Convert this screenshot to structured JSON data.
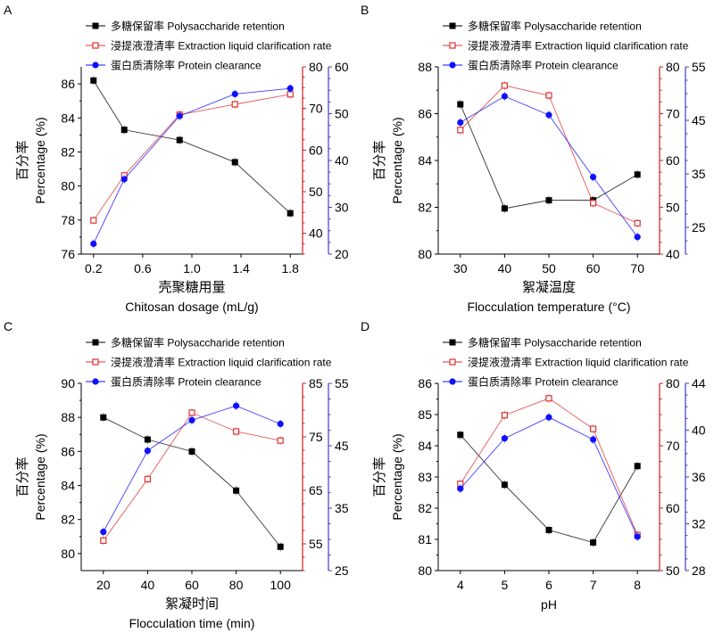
{
  "chart_data": [
    {
      "type": "line",
      "panel_label": "A",
      "xlabel_cn": "壳聚糖用量",
      "xlabel": "Chitosan dosage (mL/g)",
      "ylabel_cn": "百分率",
      "ylabel": "Percentage (%)",
      "x": [
        0.2,
        0.45,
        0.9,
        1.35,
        1.8
      ],
      "xlim": [
        0.1,
        1.9
      ],
      "xticks": [
        0.2,
        0.6,
        1.0,
        1.4,
        1.8
      ],
      "xtick_labels": [
        "0.2",
        "0.6",
        "1.0",
        "1.4",
        "1.8"
      ],
      "axes": {
        "left": {
          "ylim": [
            76,
            87
          ],
          "ticks": [
            76,
            78,
            80,
            82,
            84,
            86
          ],
          "color": "#000000"
        },
        "right_red": {
          "ylim": [
            35,
            80
          ],
          "ticks": [
            40,
            50,
            60,
            70,
            80
          ],
          "color": "#d02020"
        },
        "right_blue": {
          "ylim": [
            20,
            60
          ],
          "ticks": [
            20,
            30,
            40,
            50,
            60
          ],
          "color": "#4040c0"
        }
      },
      "series": [
        {
          "name": "多糖保留率 Polysaccharide retention",
          "axis": "left",
          "marker": "filled-square",
          "color": "#000000",
          "values": [
            86.2,
            83.3,
            82.7,
            81.4,
            78.4
          ]
        },
        {
          "name": "浸提液澄清率 Extraction liquid clarification rate",
          "axis": "right_red",
          "marker": "open-square",
          "color": "#e03030",
          "values": [
            43.1,
            53.9,
            68.5,
            71.0,
            73.4
          ]
        },
        {
          "name": "蛋白质清除率 Protein clearance",
          "axis": "right_blue",
          "marker": "filled-circle",
          "color": "#1010ff",
          "values": [
            22.2,
            36.0,
            49.5,
            54.2,
            55.4
          ]
        }
      ]
    },
    {
      "type": "line",
      "panel_label": "B",
      "xlabel_cn": "絮凝温度",
      "xlabel": "Flocculation temperature (°C)",
      "ylabel_cn": "百分率",
      "ylabel": "Percentage (%)",
      "x": [
        30,
        40,
        50,
        60,
        70
      ],
      "xlim": [
        25,
        75
      ],
      "xticks": [
        30,
        40,
        50,
        60,
        70
      ],
      "xtick_labels": [
        "30",
        "40",
        "50",
        "60",
        "70"
      ],
      "axes": {
        "left": {
          "ylim": [
            80,
            88
          ],
          "ticks": [
            80,
            82,
            84,
            86,
            88
          ],
          "color": "#000000"
        },
        "right_red": {
          "ylim": [
            40,
            80
          ],
          "ticks": [
            40,
            50,
            60,
            70,
            80
          ],
          "color": "#d02020"
        },
        "right_blue": {
          "ylim": [
            20,
            55
          ],
          "ticks": [
            25,
            35,
            45,
            55
          ],
          "color": "#4040c0"
        }
      },
      "series": [
        {
          "name": "多糖保留率 Polysaccharide retention",
          "axis": "left",
          "marker": "filled-square",
          "color": "#000000",
          "values": [
            86.4,
            81.95,
            82.3,
            82.3,
            83.4
          ]
        },
        {
          "name": "浸提液澄清率 Extraction liquid clarification rate",
          "axis": "right_red",
          "marker": "open-square",
          "color": "#e03030",
          "values": [
            66.5,
            76.0,
            73.9,
            50.9,
            46.6
          ]
        },
        {
          "name": "蛋白质清除率 Protein clearance",
          "axis": "right_blue",
          "marker": "filled-circle",
          "color": "#1010ff",
          "values": [
            44.6,
            49.5,
            46.0,
            34.4,
            23.2
          ]
        }
      ]
    },
    {
      "type": "line",
      "panel_label": "C",
      "xlabel_cn": "絮凝时间",
      "xlabel": "Flocculation time (min)",
      "ylabel_cn": "百分率",
      "ylabel": "Percentage (%)",
      "x": [
        20,
        40,
        60,
        80,
        100
      ],
      "xlim": [
        10,
        110
      ],
      "xticks": [
        20,
        40,
        60,
        80,
        100
      ],
      "xtick_labels": [
        "20",
        "40",
        "60",
        "80",
        "100"
      ],
      "axes": {
        "left": {
          "ylim": [
            79,
            90
          ],
          "ticks": [
            80,
            82,
            84,
            86,
            88,
            90
          ],
          "color": "#000000"
        },
        "right_red": {
          "ylim": [
            50,
            85
          ],
          "ticks": [
            55,
            65,
            75,
            85
          ],
          "color": "#d02020"
        },
        "right_blue": {
          "ylim": [
            25,
            55
          ],
          "ticks": [
            25,
            35,
            45,
            55
          ],
          "color": "#4040c0"
        }
      },
      "series": [
        {
          "name": "多糖保留率 Polysaccharide retention",
          "axis": "left",
          "marker": "filled-square",
          "color": "#000000",
          "values": [
            88.0,
            86.7,
            86.0,
            83.7,
            80.4
          ]
        },
        {
          "name": "浸提液澄清率 Extraction liquid clarification rate",
          "axis": "right_red",
          "marker": "open-square",
          "color": "#e03030",
          "values": [
            55.6,
            67.1,
            79.5,
            76.0,
            74.3
          ]
        },
        {
          "name": "蛋白质清除率 Protein clearance",
          "axis": "right_blue",
          "marker": "filled-circle",
          "color": "#1010ff",
          "values": [
            31.2,
            44.2,
            49.1,
            51.4,
            48.5
          ]
        }
      ]
    },
    {
      "type": "line",
      "panel_label": "D",
      "xlabel_cn": "",
      "xlabel": "pH",
      "ylabel_cn": "百分率",
      "ylabel": "Percentage (%)",
      "x": [
        4,
        5,
        6,
        7,
        8
      ],
      "xlim": [
        3.5,
        8.5
      ],
      "xticks": [
        4,
        5,
        6,
        7,
        8
      ],
      "xtick_labels": [
        "4",
        "5",
        "6",
        "7",
        "8"
      ],
      "axes": {
        "left": {
          "ylim": [
            80,
            86
          ],
          "ticks": [
            80,
            81,
            82,
            83,
            84,
            85,
            86
          ],
          "color": "#000000"
        },
        "right_red": {
          "ylim": [
            50,
            80
          ],
          "ticks": [
            50,
            60,
            70,
            80
          ],
          "color": "#d02020"
        },
        "right_blue": {
          "ylim": [
            28,
            44
          ],
          "ticks": [
            28,
            32,
            36,
            40,
            44
          ],
          "color": "#4040c0"
        }
      },
      "series": [
        {
          "name": "多糖保留率 Polysaccharide retention",
          "axis": "left",
          "marker": "filled-square",
          "color": "#000000",
          "values": [
            84.35,
            82.75,
            81.3,
            80.9,
            83.35
          ]
        },
        {
          "name": "浸提液澄清率 Extraction liquid clarification rate",
          "axis": "right_red",
          "marker": "open-square",
          "color": "#e03030",
          "values": [
            63.9,
            74.9,
            77.6,
            72.7,
            55.7
          ]
        },
        {
          "name": "蛋白质清除率 Protein clearance",
          "axis": "right_blue",
          "marker": "filled-circle",
          "color": "#1010ff",
          "values": [
            35.0,
            39.3,
            41.1,
            39.2,
            30.9
          ]
        }
      ]
    }
  ]
}
